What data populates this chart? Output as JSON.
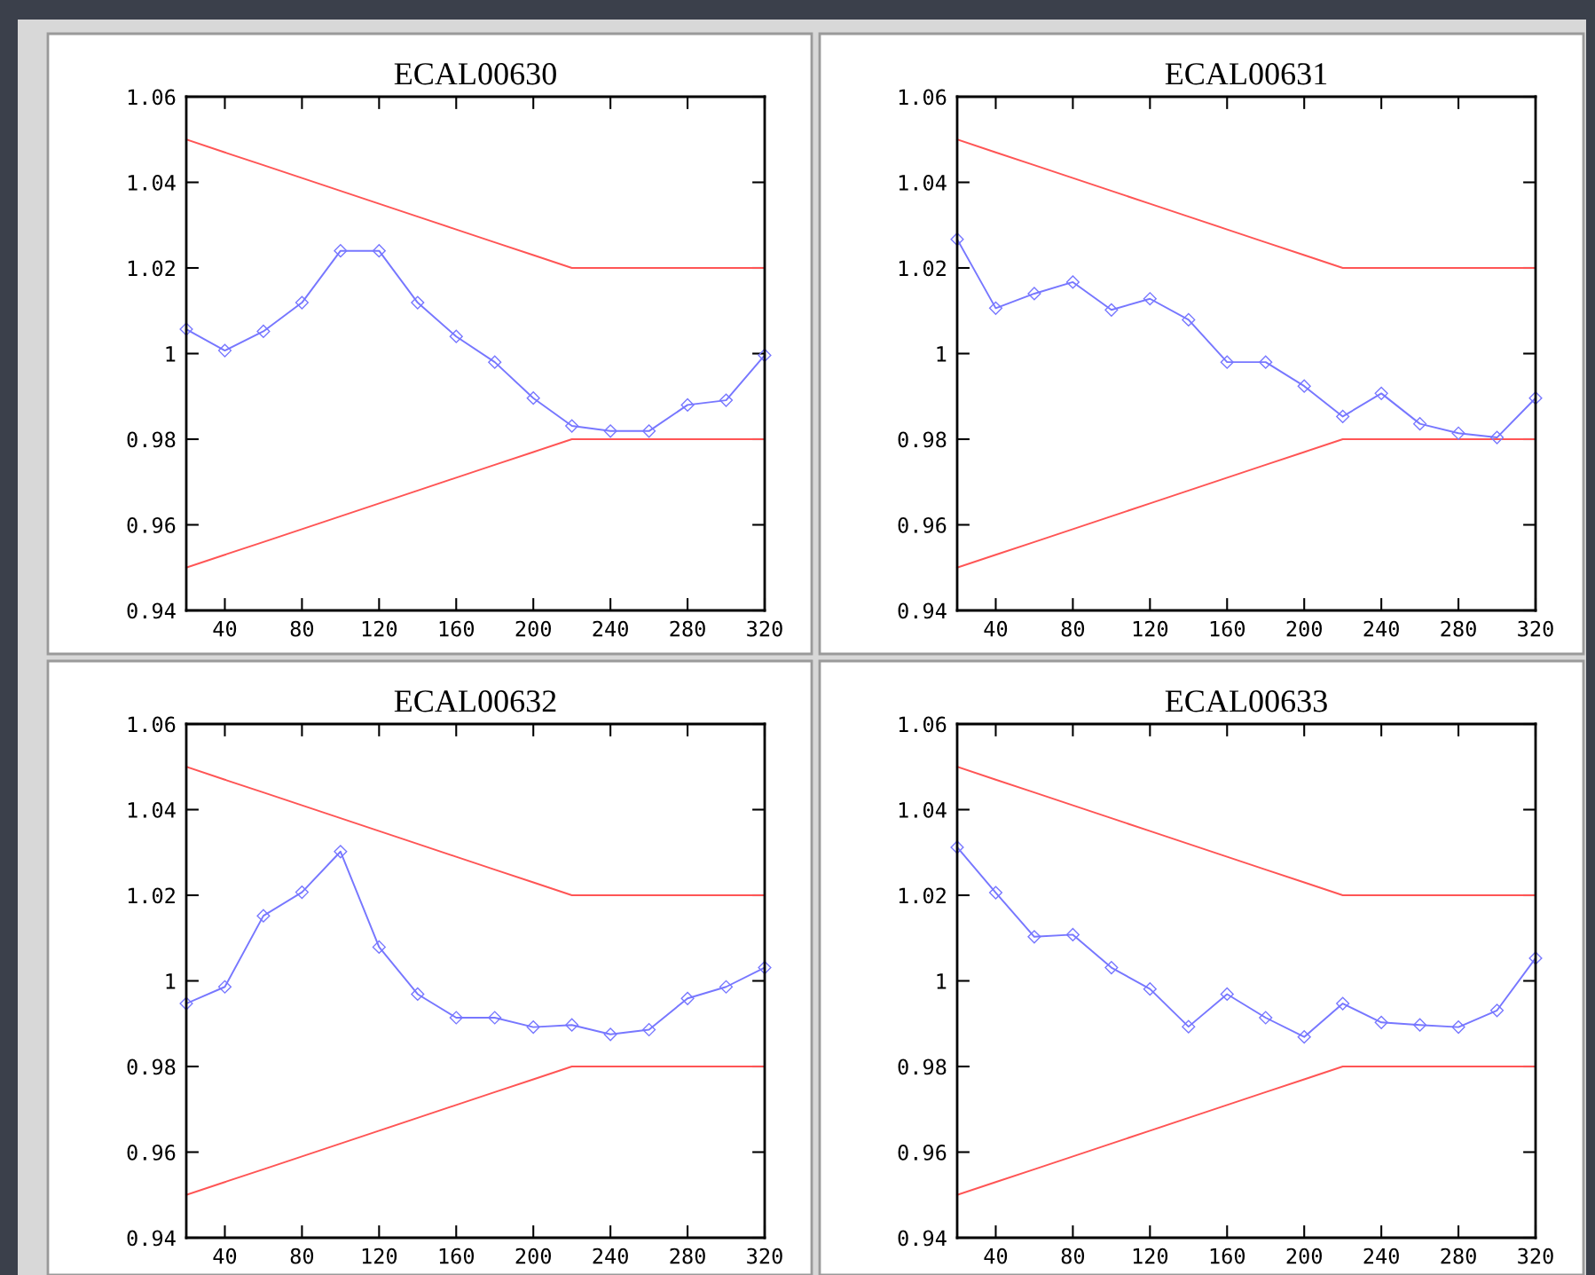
{
  "chart_data": [
    {
      "type": "line",
      "title": "ECAL00630",
      "x": [
        20,
        40,
        60,
        80,
        100,
        120,
        140,
        160,
        180,
        200,
        220,
        240,
        260,
        280,
        300,
        320
      ],
      "xlim": [
        20,
        320
      ],
      "xticks": [
        40,
        80,
        120,
        160,
        200,
        240,
        280,
        320
      ],
      "ylim": [
        0.94,
        1.06
      ],
      "yticks": [
        0.94,
        0.96,
        0.98,
        1,
        1.02,
        1.04,
        1.06
      ],
      "grid": false,
      "series": [
        {
          "color": "#ff5555",
          "marker": "none",
          "values": [
            1.05,
            1.047,
            1.044,
            1.041,
            1.038,
            1.035,
            1.032,
            1.029,
            1.026,
            1.023,
            1.02,
            1.02,
            1.02,
            1.02,
            1.02,
            1.02
          ]
        },
        {
          "color": "#ff5555",
          "marker": "none",
          "values": [
            0.95,
            0.953,
            0.956,
            0.959,
            0.962,
            0.965,
            0.968,
            0.971,
            0.974,
            0.977,
            0.98,
            0.98,
            0.98,
            0.98,
            0.98,
            0.98
          ]
        },
        {
          "color": "#7777ff",
          "marker": "diamond",
          "values": [
            1.0057,
            1.0007,
            1.0052,
            1.0119,
            1.024,
            1.024,
            1.0119,
            1.004,
            0.998,
            0.9896,
            0.9831,
            0.9819,
            0.9819,
            0.988,
            0.9891,
            0.9996
          ]
        }
      ]
    },
    {
      "type": "line",
      "title": "ECAL00631",
      "x": [
        20,
        40,
        60,
        80,
        100,
        120,
        140,
        160,
        180,
        200,
        220,
        240,
        260,
        280,
        300,
        320
      ],
      "xlim": [
        20,
        320
      ],
      "xticks": [
        40,
        80,
        120,
        160,
        200,
        240,
        280,
        320
      ],
      "ylim": [
        0.94,
        1.06
      ],
      "yticks": [
        0.94,
        0.96,
        0.98,
        1,
        1.02,
        1.04,
        1.06
      ],
      "grid": false,
      "series": [
        {
          "color": "#ff5555",
          "marker": "none",
          "values": [
            1.05,
            1.047,
            1.044,
            1.041,
            1.038,
            1.035,
            1.032,
            1.029,
            1.026,
            1.023,
            1.02,
            1.02,
            1.02,
            1.02,
            1.02,
            1.02
          ]
        },
        {
          "color": "#ff5555",
          "marker": "none",
          "values": [
            0.95,
            0.953,
            0.956,
            0.959,
            0.962,
            0.965,
            0.968,
            0.971,
            0.974,
            0.977,
            0.98,
            0.98,
            0.98,
            0.98,
            0.98,
            0.98
          ]
        },
        {
          "color": "#7777ff",
          "marker": "diamond",
          "values": [
            1.0267,
            1.0106,
            1.014,
            1.0167,
            1.0102,
            1.0128,
            1.0079,
            0.998,
            0.998,
            0.9924,
            0.9853,
            0.9907,
            0.9836,
            0.9814,
            0.9804,
            0.9896
          ]
        }
      ]
    },
    {
      "type": "line",
      "title": "ECAL00632",
      "x": [
        20,
        40,
        60,
        80,
        100,
        120,
        140,
        160,
        180,
        200,
        220,
        240,
        260,
        280,
        300,
        320
      ],
      "xlim": [
        20,
        320
      ],
      "xticks": [
        40,
        80,
        120,
        160,
        200,
        240,
        280,
        320
      ],
      "ylim": [
        0.94,
        1.06
      ],
      "yticks": [
        0.94,
        0.96,
        0.98,
        1,
        1.02,
        1.04,
        1.06
      ],
      "grid": false,
      "series": [
        {
          "color": "#ff5555",
          "marker": "none",
          "values": [
            1.05,
            1.047,
            1.044,
            1.041,
            1.038,
            1.035,
            1.032,
            1.029,
            1.026,
            1.023,
            1.02,
            1.02,
            1.02,
            1.02,
            1.02,
            1.02
          ]
        },
        {
          "color": "#ff5555",
          "marker": "none",
          "values": [
            0.95,
            0.953,
            0.956,
            0.959,
            0.962,
            0.965,
            0.968,
            0.971,
            0.974,
            0.977,
            0.98,
            0.98,
            0.98,
            0.98,
            0.98,
            0.98
          ]
        },
        {
          "color": "#7777ff",
          "marker": "diamond",
          "values": [
            0.9947,
            0.9986,
            1.0152,
            1.0207,
            1.0302,
            1.0079,
            0.9969,
            0.9914,
            0.9914,
            0.9892,
            0.9897,
            0.9875,
            0.9886,
            0.9959,
            0.9986,
            1.0031
          ]
        }
      ]
    },
    {
      "type": "line",
      "title": "ECAL00633",
      "x": [
        20,
        40,
        60,
        80,
        100,
        120,
        140,
        160,
        180,
        200,
        220,
        240,
        260,
        280,
        300,
        320
      ],
      "xlim": [
        20,
        320
      ],
      "xticks": [
        40,
        80,
        120,
        160,
        200,
        240,
        280,
        320
      ],
      "ylim": [
        0.94,
        1.06
      ],
      "yticks": [
        0.94,
        0.96,
        0.98,
        1,
        1.02,
        1.04,
        1.06
      ],
      "grid": false,
      "series": [
        {
          "color": "#ff5555",
          "marker": "none",
          "values": [
            1.05,
            1.047,
            1.044,
            1.041,
            1.038,
            1.035,
            1.032,
            1.029,
            1.026,
            1.023,
            1.02,
            1.02,
            1.02,
            1.02,
            1.02,
            1.02
          ]
        },
        {
          "color": "#ff5555",
          "marker": "none",
          "values": [
            0.95,
            0.953,
            0.956,
            0.959,
            0.962,
            0.965,
            0.968,
            0.971,
            0.974,
            0.977,
            0.98,
            0.98,
            0.98,
            0.98,
            0.98,
            0.98
          ]
        },
        {
          "color": "#7777ff",
          "marker": "diamond",
          "values": [
            1.0312,
            1.0206,
            1.0103,
            1.0108,
            1.0031,
            0.9981,
            0.9893,
            0.9969,
            0.9914,
            0.9869,
            0.9947,
            0.9903,
            0.9897,
            0.9892,
            0.9931,
            1.0053
          ]
        }
      ]
    }
  ]
}
